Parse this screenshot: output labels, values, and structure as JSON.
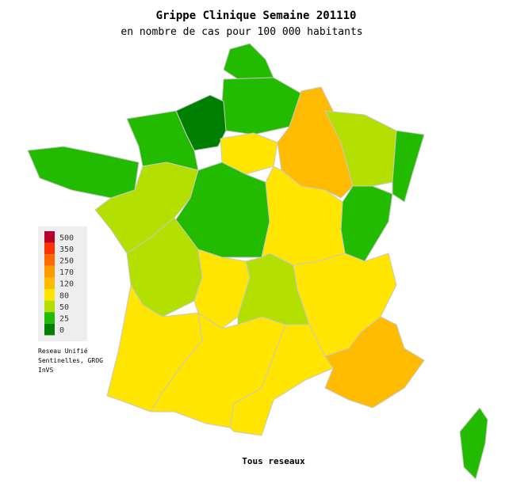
{
  "header": {
    "title": "Grippe Clinique Semaine 201110",
    "subtitle": "en nombre de cas pour 100 000 habitants"
  },
  "legend": {
    "entries": [
      {
        "label": 500,
        "color": "#b8002c"
      },
      {
        "label": 350,
        "color": "#ff3300"
      },
      {
        "label": 250,
        "color": "#ff6a00"
      },
      {
        "label": 170,
        "color": "#ff9a00"
      },
      {
        "label": 120,
        "color": "#ffbb00"
      },
      {
        "label": 80,
        "color": "#ffe500"
      },
      {
        "label": 50,
        "color": "#b3e000"
      },
      {
        "label": 25,
        "color": "#22bb00"
      },
      {
        "label": 0,
        "color": "#008000"
      }
    ]
  },
  "source": [
    "Reseau Unifié",
    "Sentinelles, GROG",
    "InVS"
  ],
  "footer": "Tous reseaux"
}
